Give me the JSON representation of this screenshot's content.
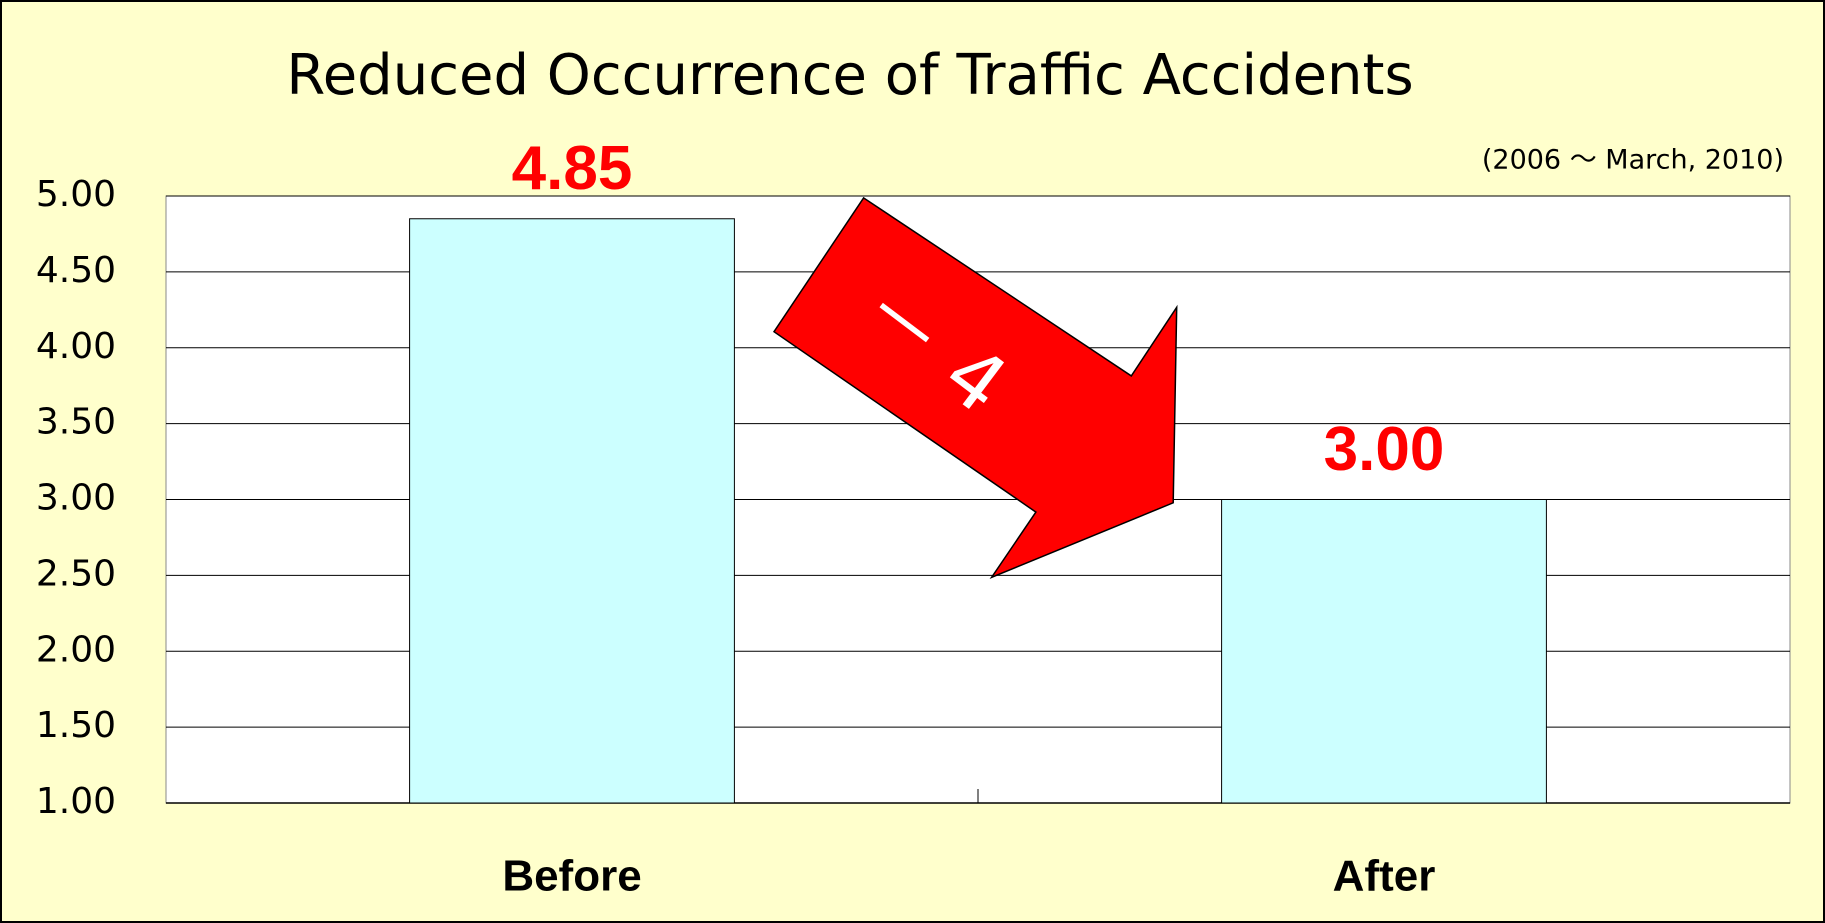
{
  "chart_data": {
    "type": "bar",
    "title": "Reduced Occurrence of Traffic Accidents",
    "subtitle": "(2006 ～ March, 2010)",
    "annotation": "－ 4",
    "categories": [
      "Before",
      "After"
    ],
    "values": [
      4.85,
      3.0
    ],
    "value_labels": [
      "4.85",
      "3.00"
    ],
    "color": "#ccffff",
    "label_color": "#ff0000",
    "ylim": [
      1,
      5
    ],
    "yticks": [
      {
        "value": 1,
        "label": "1.00"
      },
      {
        "value": 1.5,
        "label": "1.50"
      },
      {
        "value": 2,
        "label": "2.00"
      },
      {
        "value": 2.5,
        "label": "2.50"
      },
      {
        "value": 3,
        "label": "3.00"
      },
      {
        "value": 3.5,
        "label": "3.50"
      },
      {
        "value": 4,
        "label": "4.00"
      },
      {
        "value": 4.5,
        "label": "4.50"
      },
      {
        "value": 5,
        "label": "5.00"
      }
    ],
    "grid": true
  }
}
